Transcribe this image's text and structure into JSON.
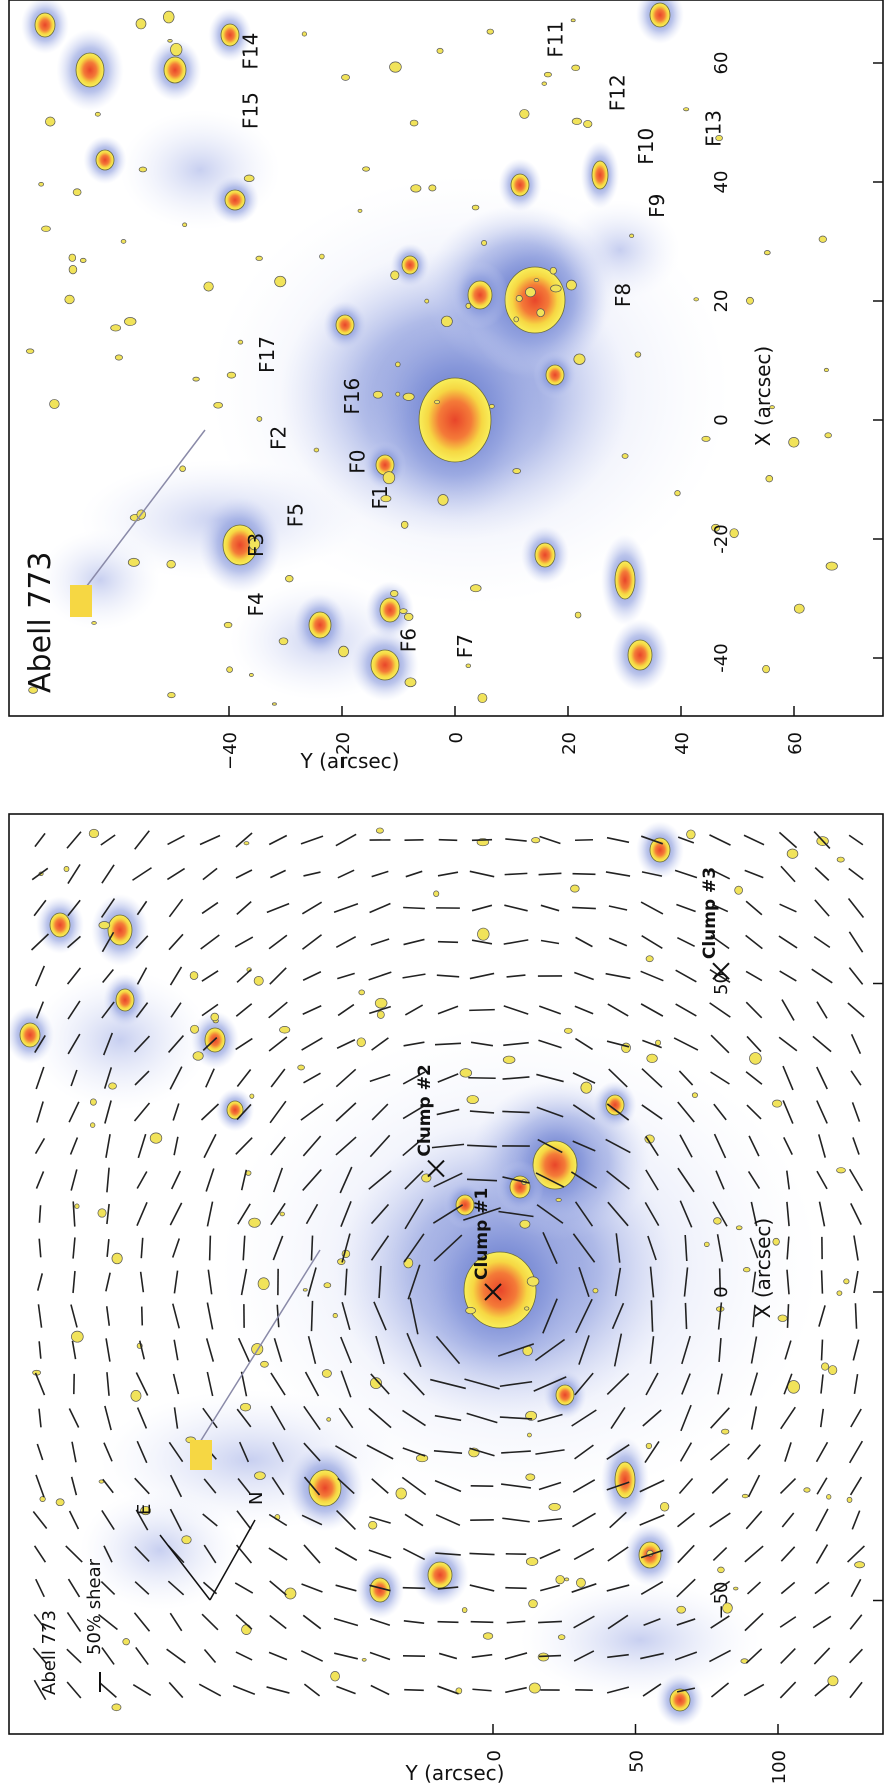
{
  "figure": {
    "top_panel": {
      "title": "Abell 773",
      "xlabel": "X (arcsec)",
      "ylabel": "Y (arcsec)",
      "xticks": [
        "-40",
        "-20",
        "0",
        "20",
        "40",
        "60"
      ],
      "yticks": [
        "60",
        "40",
        "20",
        "0",
        "−20",
        "−40"
      ],
      "features": [
        {
          "label": "F0",
          "x": -7,
          "y": -16
        },
        {
          "label": "F1",
          "x": -13,
          "y": -12
        },
        {
          "label": "F2",
          "x": -3,
          "y": -30
        },
        {
          "label": "F3",
          "x": -21,
          "y": -34
        },
        {
          "label": "F4",
          "x": -31,
          "y": -34
        },
        {
          "label": "F5",
          "x": -16,
          "y": -27
        },
        {
          "label": "F6",
          "x": -37,
          "y": -7
        },
        {
          "label": "F7",
          "x": -38,
          "y": 3
        },
        {
          "label": "F8",
          "x": 21,
          "y": 31
        },
        {
          "label": "F9",
          "x": 36,
          "y": 37
        },
        {
          "label": "F10",
          "x": 46,
          "y": 35
        },
        {
          "label": "F11",
          "x": 64,
          "y": 19
        },
        {
          "label": "F12",
          "x": 55,
          "y": 30
        },
        {
          "label": "F13",
          "x": 49,
          "y": 47
        },
        {
          "label": "F14",
          "x": 62,
          "y": -35
        },
        {
          "label": "F15",
          "x": 52,
          "y": -35
        },
        {
          "label": "F16",
          "x": 4,
          "y": -17
        },
        {
          "label": "F17",
          "x": 11,
          "y": -32
        }
      ]
    },
    "bottom_panel": {
      "title": "Abell 773",
      "xlabel": "X (arcsec)",
      "ylabel": "Y (arcsec)",
      "xticks": [
        "−50",
        "0",
        "50"
      ],
      "yticks": [
        "100",
        "50",
        "0"
      ],
      "legend": {
        "shear_label": "50% shear"
      },
      "compass": {
        "east": "E",
        "north": "N"
      },
      "clumps": [
        {
          "label": "Clump #1",
          "x": 0,
          "y": 0
        },
        {
          "label": "Clump #2",
          "x": 20,
          "y": -20
        },
        {
          "label": "Clump #3",
          "x": 52,
          "y": 80
        }
      ]
    }
  },
  "colors": {
    "halo": "#6f7fcc",
    "halo_light": "#b9c3ec",
    "core_outer": "#f4e64a",
    "core_inner": "#ef5a2c",
    "axis": "#111111"
  }
}
